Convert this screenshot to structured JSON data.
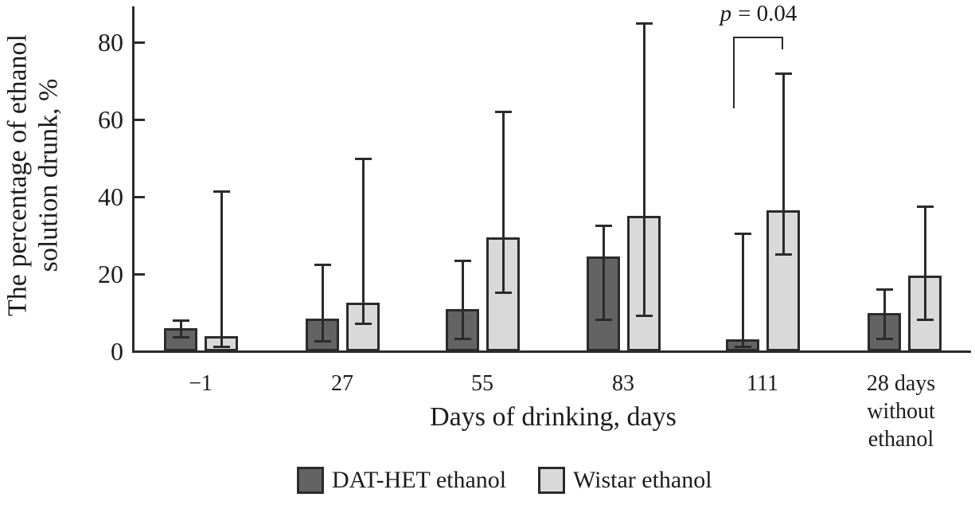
{
  "chart_data": {
    "type": "bar",
    "title": "",
    "ylabel": "The percentage of ethanol solution drunk, %",
    "ylabel_lines": [
      "The percentage of ethanol",
      "solution drunk, %"
    ],
    "xlabel": "Days of drinking, days",
    "ylim": [
      0,
      90
    ],
    "yticks": [
      0,
      20,
      40,
      60,
      80
    ],
    "grid": false,
    "legend_position": "bottom",
    "categories": [
      "−1",
      "27",
      "55",
      "83",
      "111",
      "28 days\nwithout\nethanol"
    ],
    "series": [
      {
        "name": "DAT-HET ethanol",
        "color": "#636363",
        "values": [
          6,
          8.5,
          11,
          24.5,
          3,
          10
        ],
        "whisker_low": [
          3.5,
          2.5,
          3,
          8,
          1,
          3
        ],
        "whisker_high": [
          8,
          22.5,
          23.5,
          32.5,
          30.5,
          16
        ]
      },
      {
        "name": "Wistar ethanol",
        "color": "#d9d9d9",
        "values": [
          4,
          12.5,
          29.5,
          35,
          36.5,
          19.5
        ],
        "whisker_low": [
          1,
          7,
          15,
          9,
          25,
          8
        ],
        "whisker_high": [
          41.5,
          50,
          62,
          85,
          72,
          37.5
        ]
      }
    ],
    "annotation": {
      "text": "p = 0.04",
      "italic_part": "p",
      "rest": "= 0.04",
      "location": "bracket between DAT-HET and Wistar bars at day 111"
    },
    "line_color": "#2b2b2b"
  }
}
